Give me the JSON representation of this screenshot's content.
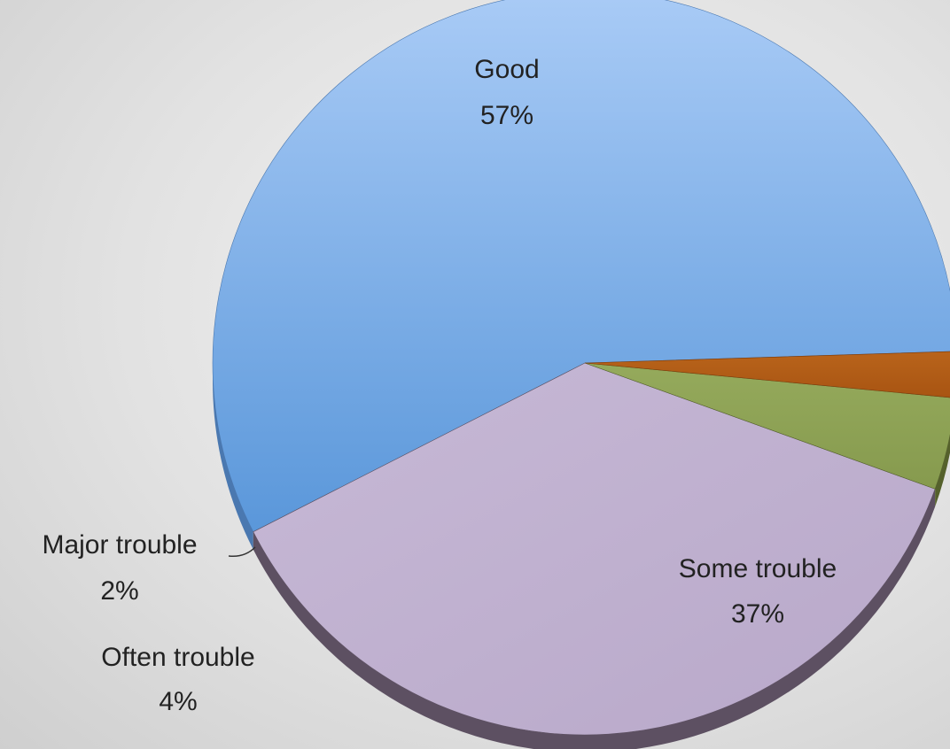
{
  "chart_data": {
    "type": "pie",
    "style": "3d",
    "legend": "none",
    "categories": [
      "Good",
      "Some trouble",
      "Often trouble",
      "Major trouble"
    ],
    "values": [
      57,
      37,
      4,
      2
    ],
    "data_labels": [
      "57%",
      "37%",
      "4%",
      "2%"
    ],
    "colors": [
      "#6fa3e3",
      "#bfb0cf",
      "#8ea356",
      "#b25c15"
    ],
    "side_colors": [
      "#4a78b0",
      "#5d5062",
      "#55612c",
      "#7a3a0a"
    ]
  }
}
